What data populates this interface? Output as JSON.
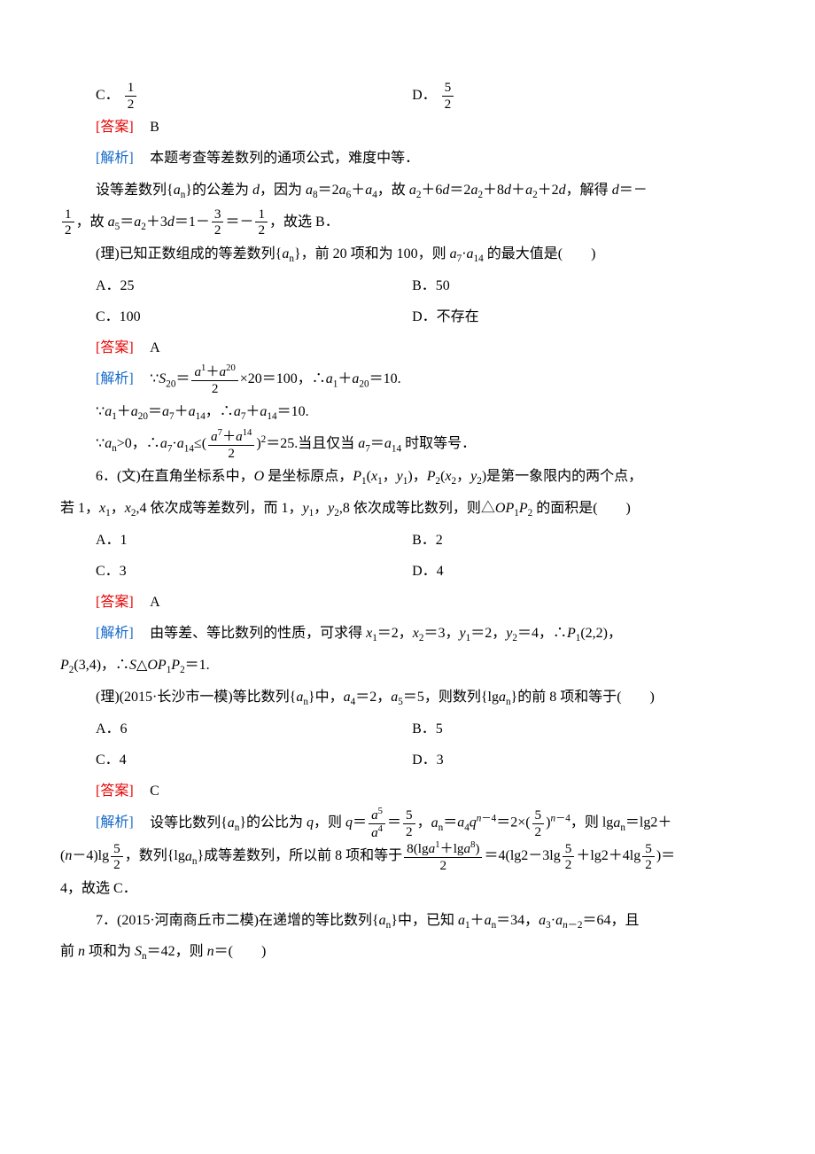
{
  "frac_1_2": {
    "num": "1",
    "den": "2"
  },
  "frac_5_2": {
    "num": "5",
    "den": "2"
  },
  "frac_3_2": {
    "num": "3",
    "den": "2"
  },
  "frac_a1a20_2": {
    "num": "a",
    "den": "2"
  },
  "opt5_C": "C．",
  "opt5_D": "D．",
  "ans_label": "[答案]",
  "exp_label": "[解析]",
  "ans5_letter": "B",
  "exp5_line1": "本题考查等差数列的通项公式，难度中等．",
  "exp5_line2a": "设等差数列{",
  "exp5_line2b": "}的公差为 ",
  "exp5_line2c": "，因为 ",
  "exp5_line2d": "＝2",
  "exp5_line2e": "＋",
  "exp5_line2f": "，故 ",
  "exp5_line2g": "＋6",
  "exp5_line2h": "＝2",
  "exp5_line2i": "＋8",
  "exp5_line2j": "＋",
  "exp5_line2k": "＋2",
  "exp5_line2l": "，解得 ",
  "exp5_line2m": "＝－",
  "exp5_line3a": "，故 ",
  "exp5_line3b": "＝",
  "exp5_line3c": "＋3",
  "exp5_line3d": "＝1－",
  "exp5_line3e": "＝－",
  "exp5_line3f": "，故选 B．",
  "li5_stem_a": "(理)已知正数组成的等差数列{",
  "li5_stem_b": "}，前 20 项和为 100，则 ",
  "li5_stem_c": " 的最大值是(　　)",
  "li5_o_A": "A．25",
  "li5_o_B": "B．50",
  "li5_o_C": "C．100",
  "li5_o_D": "D．不存在",
  "ans5b_letter": "A",
  "exp5b_l1a": "∵",
  "exp5b_l1b": "＝",
  "exp5b_l1c": "×20＝100，∴",
  "exp5b_l1d": "＋",
  "exp5b_l1e": "＝10.",
  "exp5b_l2a": "∵",
  "exp5b_l2b": "＋",
  "exp5b_l2c": "＝",
  "exp5b_l2d": "＋",
  "exp5b_l2e": "，∴",
  "exp5b_l2f": "＋",
  "exp5b_l2g": "＝10.",
  "exp5b_l3a": "∵",
  "exp5b_l3b": ">0，∴",
  "exp5b_l3c": "≤(",
  "exp5b_l3d": ")",
  "exp5b_l3e": "＝25.当且仅当 ",
  "exp5b_l3f": "＝",
  "exp5b_l3g": " 时取等号．",
  "q6_stem_a": "6．(文)在直角坐标系中，",
  "q6_stem_b": " 是坐标原点，",
  "q6_stem_c": "(",
  "q6_stem_d": "，",
  "q6_stem_e": ")，",
  "q6_stem_f": "(",
  "q6_stem_g": "，",
  "q6_stem_h": ")是第一象限内的两个点，",
  "q6_stem_line2a": "若 1，",
  "q6_stem_line2b": "，",
  "q6_stem_line2c": ",4 依次成等差数列，而 1，",
  "q6_stem_line2d": "，",
  "q6_stem_line2e": ",8 依次成等比数列，则△",
  "q6_stem_line2f": " 的面积是(　　)",
  "q6_o_A": "A．1",
  "q6_o_B": "B．2",
  "q6_o_C": "C．3",
  "q6_o_D": "D．4",
  "ans6_letter": "A",
  "exp6_l1a": "由等差、等比数列的性质，可求得 ",
  "exp6_l1b": "＝2，",
  "exp6_l1c": "＝3，",
  "exp6_l1d": "＝2，",
  "exp6_l1e": "＝4，∴",
  "exp6_l1f": "(2,2)，",
  "exp6_l2a": "(3,4)，∴",
  "exp6_l2b": "△",
  "exp6_l2c": "＝1.",
  "q6b_stem_a": "(理)(2015·长沙市一模)等比数列{",
  "q6b_stem_b": "}中，",
  "q6b_stem_c": "＝2，",
  "q6b_stem_d": "＝5，则数列{lg",
  "q6b_stem_e": "}的前 8 项和等于(　　)",
  "q6b_o_A": "A．6",
  "q6b_o_B": "B．5",
  "q6b_o_C": "C．4",
  "q6b_o_D": "D．3",
  "ans6b_letter": "C",
  "exp6b_l1a": "设等比数列{",
  "exp6b_l1b": "}的公比为 ",
  "exp6b_l1c": "，则 ",
  "exp6b_l1d": "＝",
  "exp6b_l1e": "＝",
  "exp6b_l1f": "，",
  "exp6b_l1g": "＝",
  "exp6b_l1h": "＝2×(",
  "exp6b_l1i": ")",
  "exp6b_l1j": "，则 lg",
  "exp6b_l1k": "＝lg2＋",
  "exp6b_l2a": "(",
  "exp6b_l2b": "－4)lg",
  "exp6b_l2c": "，数列{lg",
  "exp6b_l2d": "}成等差数列，所以前 8 项和等于",
  "exp6b_l2e": "＝4(lg2－3lg",
  "exp6b_l2f": "＋lg2＋4lg",
  "exp6b_l2g": ")＝",
  "exp6b_l3": "4，故选 C．",
  "q7_stem_a": "7．(2015·河南商丘市二模)在递增的等比数列{",
  "q7_stem_b": "}中，已知 ",
  "q7_stem_c": "＋",
  "q7_stem_d": "＝34，",
  "q7_stem_e": "·",
  "q7_stem_f": "＝64，且",
  "q7_line2a": "前 ",
  "q7_line2b": " 项和为 ",
  "q7_line2c": "＝42，则 ",
  "q7_line2d": "＝(　　)",
  "frac_a5_a4_num": "a",
  "frac_a5_a4_den": "a",
  "frac_8lga_num_a": "8(lg",
  "frac_8lga_num_b": "＋lg",
  "frac_8lga_num_c": ")"
}
